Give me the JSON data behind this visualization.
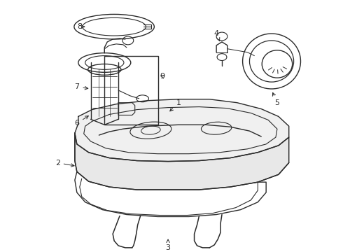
{
  "background_color": "#ffffff",
  "line_color": "#2a2a2a",
  "lw": 1.0,
  "fig_width": 4.9,
  "fig_height": 3.6,
  "dpi": 100
}
